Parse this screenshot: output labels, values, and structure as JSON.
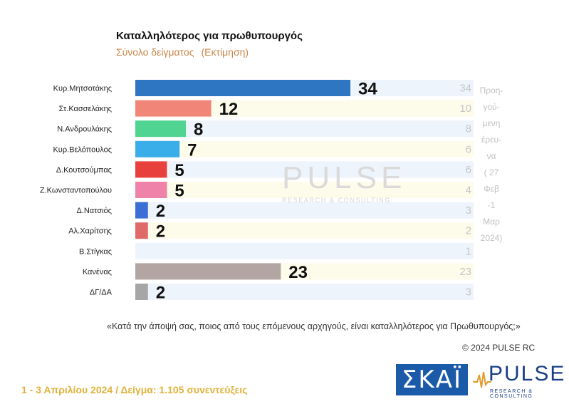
{
  "header": {
    "title": "Καταλληλότερος για πρωθυπουργός",
    "subtitle_main": "Σύνολο δείγματος",
    "subtitle_note": "(Εκτίμηση)"
  },
  "chart_data": {
    "type": "bar",
    "orientation": "horizontal",
    "categories": [
      "Κυρ.Μητσοτάκης",
      "Στ.Κασσελάκης",
      "Ν.Ανδρουλάκης",
      "Κυρ.Βελόπουλος",
      "Δ.Κουτσούμπας",
      "Ζ.Κωνσταντοπούλου",
      "Δ.Νατσιός",
      "Αλ.Χαρίτσης",
      "Β.Στίγκας",
      "Κανένας",
      "ΔΓ/ΔΑ"
    ],
    "series": [
      {
        "values": [
          34,
          12,
          8,
          7,
          5,
          5,
          2,
          2,
          null,
          23,
          2
        ]
      },
      {
        "values": [
          34,
          10,
          8,
          6,
          6,
          4,
          3,
          2,
          1,
          23,
          3
        ]
      }
    ],
    "value_labels": [
      "34",
      "12",
      "8",
      "7",
      "5",
      "5",
      "2",
      "2",
      "",
      "23",
      "2"
    ],
    "previous_labels": [
      "34",
      "10",
      "8",
      "6",
      "6",
      "4",
      "3",
      "2",
      "1",
      "23",
      "3"
    ],
    "colors": [
      "#2e75c2",
      "#f08578",
      "#4fd491",
      "#3aaee8",
      "#e8403c",
      "#ef82a8",
      "#3b6fd6",
      "#e06a6a",
      "#ffffff",
      "#b3a5a2",
      "#a6a6a6"
    ],
    "previous_note_lines": [
      "Προη-",
      "γού-",
      "μενη",
      "έρευ-",
      "να",
      "( 27",
      "Φεβ",
      "-1",
      "Μαρ",
      "2024)"
    ],
    "xlim": [
      0,
      40
    ],
    "grid": false,
    "legend": "none"
  },
  "watermark": {
    "main": "PULSE",
    "sub": "RESEARCH & CONSULTING"
  },
  "question": "«Κατά την άποψή σας, ποιος από τους επόμενους αρχηγούς, είναι καταλληλότερος για Πρωθυπουργός;»",
  "copyright": "© 2024 PULSE RC",
  "footer": {
    "date_sample": "1 - 3  Απριλίου 2024  /  Δείγμα:  1.105 συνεντεύξεις"
  },
  "logos": {
    "skai": "ΣΚΑΪ",
    "pulse_main": "PULSE",
    "pulse_sub": "RESEARCH & CONSULTING",
    "skai_color": "#1a5aa8",
    "pulse_color": "#1a3f86"
  }
}
